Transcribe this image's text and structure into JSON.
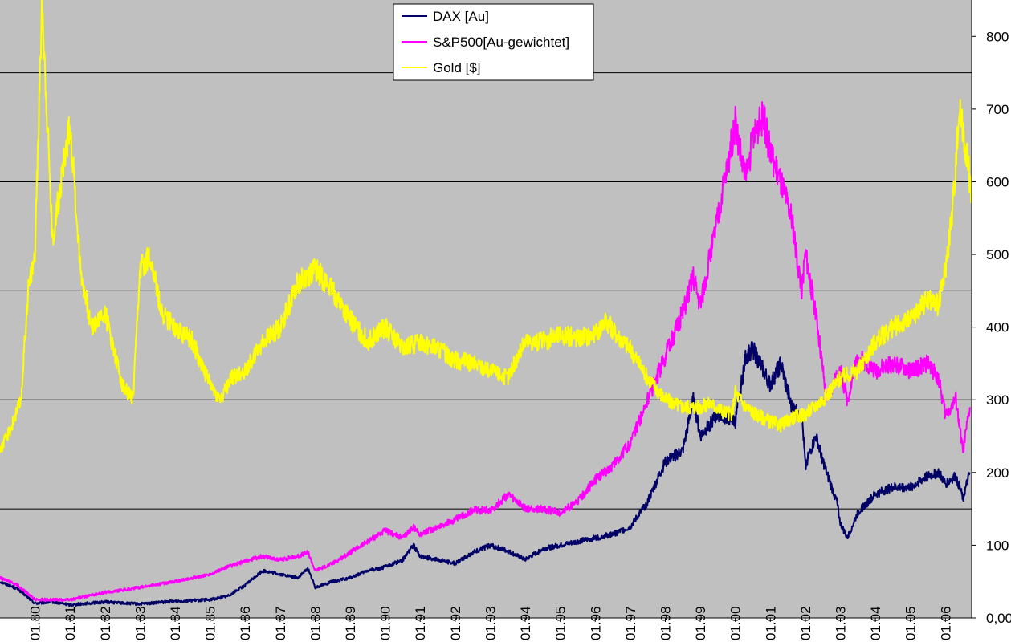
{
  "chart_data": {
    "type": "line",
    "title": "",
    "xlabel": "",
    "ylabel": "",
    "xlim": [
      1979.0,
      2006.75
    ],
    "ylim": [
      0,
      850
    ],
    "grid": true,
    "plot_background": "#c0c0c0",
    "legend_position": "top-center",
    "x_tick_labels": [
      "01.80",
      "01.81",
      "01.82",
      "01.83",
      "01.84",
      "01.85",
      "01.86",
      "01.87",
      "01.88",
      "01.89",
      "01.90",
      "01.91",
      "01.92",
      "01.93",
      "01.94",
      "01.95",
      "01.96",
      "01.97",
      "01.98",
      "01.99",
      "01.00",
      "01.01",
      "01.02",
      "01.03",
      "01.04",
      "01.05",
      "01.06"
    ],
    "x_tick_values": [
      1980,
      1981,
      1982,
      1983,
      1984,
      1985,
      1986,
      1987,
      1988,
      1989,
      1990,
      1991,
      1992,
      1993,
      1994,
      1995,
      1996,
      1997,
      1998,
      1999,
      2000,
      2001,
      2002,
      2003,
      2004,
      2005,
      2006
    ],
    "y_tick_labels": [
      "0,00",
      "100",
      "200",
      "300",
      "400",
      "500",
      "600",
      "700",
      "800"
    ],
    "y_tick_values": [
      0,
      100,
      200,
      300,
      400,
      500,
      600,
      700,
      800
    ],
    "gridlines": [
      150,
      300,
      450,
      600,
      750
    ],
    "series": [
      {
        "name": "DAX [Au]",
        "color": "#000066",
        "x": [
          1979.0,
          1979.5,
          1980.0,
          1980.5,
          1981.0,
          1982.0,
          1983.0,
          1984.0,
          1985.0,
          1985.5,
          1986.0,
          1986.5,
          1987.0,
          1987.5,
          1987.8,
          1988.0,
          1988.5,
          1989.0,
          1989.5,
          1990.0,
          1990.5,
          1990.8,
          1991.0,
          1992.0,
          1992.5,
          1993.0,
          1993.5,
          1994.0,
          1994.5,
          1995.0,
          1995.5,
          1996.0,
          1996.5,
          1997.0,
          1997.5,
          1998.0,
          1998.5,
          1998.8,
          1999.0,
          1999.5,
          2000.0,
          2000.3,
          2000.5,
          2000.8,
          2001.0,
          2001.3,
          2001.6,
          2001.9,
          2002.0,
          2002.3,
          2002.6,
          2002.9,
          2003.0,
          2003.2,
          2003.5,
          2004.0,
          2004.5,
          2005.0,
          2005.5,
          2005.8,
          2006.0,
          2006.3,
          2006.5,
          2006.7
        ],
        "y": [
          50,
          40,
          20,
          22,
          18,
          22,
          19,
          23,
          25,
          30,
          45,
          65,
          60,
          55,
          68,
          42,
          50,
          55,
          65,
          70,
          80,
          100,
          85,
          75,
          90,
          100,
          92,
          80,
          95,
          100,
          105,
          110,
          115,
          125,
          160,
          215,
          230,
          300,
          250,
          280,
          270,
          360,
          370,
          340,
          320,
          350,
          290,
          280,
          210,
          250,
          200,
          160,
          130,
          110,
          145,
          170,
          180,
          180,
          195,
          200,
          185,
          195,
          165,
          200
        ]
      },
      {
        "name": "S&P500[Au-gewichtet]",
        "color": "#ff00ff",
        "x": [
          1979.0,
          1979.5,
          1980.0,
          1980.5,
          1981.0,
          1982.0,
          1983.0,
          1984.0,
          1985.0,
          1985.5,
          1986.0,
          1986.5,
          1987.0,
          1987.5,
          1987.8,
          1988.0,
          1988.5,
          1989.0,
          1989.5,
          1990.0,
          1990.5,
          1990.8,
          1991.0,
          1992.0,
          1992.5,
          1993.0,
          1993.3,
          1993.5,
          1994.0,
          1994.5,
          1995.0,
          1995.5,
          1996.0,
          1996.5,
          1997.0,
          1997.5,
          1998.0,
          1998.5,
          1998.8,
          1999.0,
          1999.5,
          2000.0,
          2000.3,
          2000.5,
          2000.8,
          2001.0,
          2001.3,
          2001.6,
          2001.9,
          2002.0,
          2002.3,
          2002.6,
          2002.9,
          2003.0,
          2003.2,
          2003.5,
          2004.0,
          2004.5,
          2005.0,
          2005.5,
          2005.8,
          2006.0,
          2006.3,
          2006.5,
          2006.7
        ],
        "y": [
          55,
          45,
          25,
          25,
          25,
          35,
          42,
          50,
          60,
          70,
          78,
          85,
          80,
          85,
          90,
          65,
          75,
          90,
          105,
          120,
          110,
          125,
          115,
          135,
          148,
          148,
          160,
          170,
          150,
          150,
          145,
          160,
          190,
          210,
          240,
          300,
          360,
          420,
          470,
          430,
          550,
          680,
          600,
          660,
          690,
          640,
          600,
          550,
          450,
          500,
          420,
          300,
          330,
          340,
          300,
          360,
          340,
          350,
          340,
          350,
          330,
          280,
          300,
          230,
          290
        ]
      },
      {
        "name": "Gold [$]",
        "color": "#ffff00",
        "x": [
          1979.0,
          1979.3,
          1979.6,
          1979.8,
          1980.0,
          1980.2,
          1980.5,
          1980.8,
          1981.0,
          1981.3,
          1981.6,
          1982.0,
          1982.5,
          1982.8,
          1983.0,
          1983.3,
          1983.6,
          1984.0,
          1984.5,
          1985.0,
          1985.3,
          1985.6,
          1986.0,
          1986.5,
          1987.0,
          1987.5,
          1988.0,
          1988.5,
          1989.0,
          1989.5,
          1990.0,
          1990.5,
          1991.0,
          1991.5,
          1992.0,
          1992.5,
          1993.0,
          1993.5,
          1994.0,
          1994.5,
          1995.0,
          1995.5,
          1996.0,
          1996.3,
          1996.6,
          1997.0,
          1997.5,
          1998.0,
          1998.5,
          1999.0,
          1999.3,
          1999.6,
          1999.9,
          2000.0,
          2000.3,
          2000.6,
          2001.0,
          2001.3,
          2001.6,
          2002.0,
          2002.5,
          2003.0,
          2003.5,
          2004.0,
          2004.5,
          2005.0,
          2005.5,
          2005.8,
          2006.0,
          2006.2,
          2006.4,
          2006.6,
          2006.75
        ],
        "y": [
          230,
          260,
          300,
          450,
          500,
          850,
          520,
          620,
          680,
          480,
          400,
          420,
          320,
          300,
          480,
          500,
          420,
          400,
          380,
          320,
          300,
          330,
          340,
          380,
          400,
          460,
          480,
          450,
          410,
          380,
          400,
          370,
          380,
          370,
          355,
          350,
          340,
          330,
          380,
          380,
          390,
          385,
          390,
          410,
          390,
          370,
          330,
          300,
          290,
          290,
          295,
          285,
          280,
          310,
          290,
          280,
          270,
          265,
          275,
          280,
          300,
          330,
          340,
          380,
          400,
          410,
          440,
          430,
          480,
          560,
          700,
          640,
          580
        ]
      }
    ]
  }
}
